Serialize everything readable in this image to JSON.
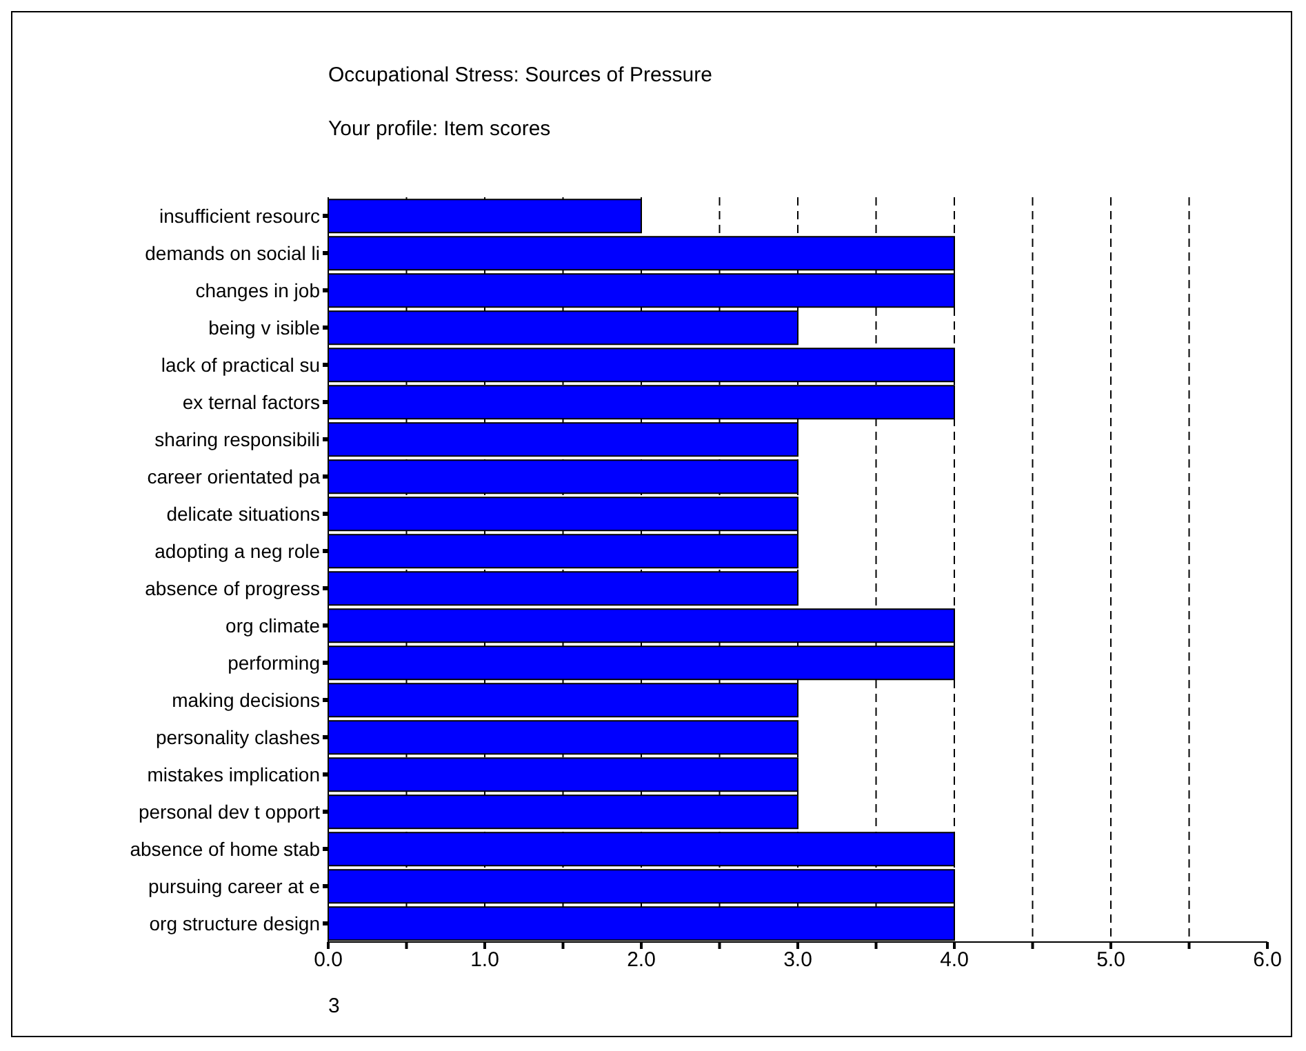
{
  "chart_data": {
    "type": "bar",
    "orientation": "horizontal",
    "title": "Occupational Stress: Sources of Pressure",
    "subtitle": "Your profile: Item scores",
    "categories": [
      "insufficient resourc",
      "demands on social li",
      "changes in job",
      "being v isible",
      "lack of practical su",
      "ex ternal factors",
      "sharing responsibili",
      "career orientated pa",
      "delicate situations",
      "adopting a neg role",
      "absence of progress",
      "org climate",
      "performing",
      "making decisions",
      "personality clashes",
      "mistakes implication",
      "personal dev t opport",
      "absence of home stab",
      "pursuing career at e",
      "org structure design"
    ],
    "values": [
      2,
      4,
      4,
      3,
      4,
      4,
      3,
      3,
      3,
      3,
      3,
      4,
      4,
      3,
      3,
      3,
      3,
      4,
      4,
      4
    ],
    "color": "#0000ff",
    "xlim": [
      0,
      6
    ],
    "xticks": [
      {
        "value": 0,
        "label": "0.0"
      },
      {
        "value": 0.5,
        "label": null
      },
      {
        "value": 1,
        "label": "1.0"
      },
      {
        "value": 1.5,
        "label": null
      },
      {
        "value": 2,
        "label": "2.0"
      },
      {
        "value": 2.5,
        "label": null
      },
      {
        "value": 3,
        "label": "3.0"
      },
      {
        "value": 3.5,
        "label": null
      },
      {
        "value": 4,
        "label": "4.0"
      },
      {
        "value": 4.5,
        "label": null
      },
      {
        "value": 5,
        "label": "5.0"
      },
      {
        "value": 5.5,
        "label": null
      },
      {
        "value": 6,
        "label": "6.0"
      }
    ],
    "grid": "x",
    "annotations": [
      "3"
    ]
  }
}
